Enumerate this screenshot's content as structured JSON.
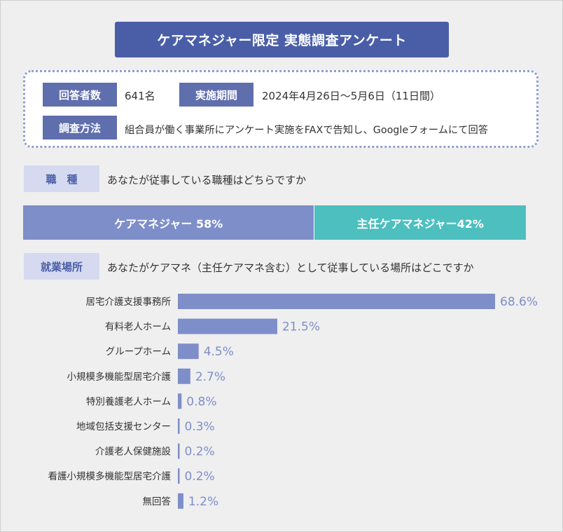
{
  "title": "ケアマネジャー限定 実態調査アンケート",
  "info": {
    "respondents_label": "回答者数",
    "respondents_value": "641名",
    "period_label": "実施期間",
    "period_value": "2024年4月26日〜5月6日（11日間）",
    "method_label": "調査方法",
    "method_value": "組合員が働く事業所にアンケート実施をFAXで告知し、Googleフォームにて回答"
  },
  "colors": {
    "title_bg": "#4a5ea8",
    "bar": "#7e8ec9",
    "stack_second": "#4cbfbe",
    "label_text": "#7e8ec9"
  },
  "q1": {
    "tag": "職　種",
    "question": "あなたが従事している職種はどちらですか"
  },
  "q2": {
    "tag": "就業場所",
    "question": "あなたがケアマネ（主任ケアマネ含む）として従事している場所はどこですか"
  },
  "chart_data": [
    {
      "type": "bar",
      "orientation": "horizontal-stacked",
      "series": [
        {
          "name": "ケアマネジャー",
          "value": 58,
          "label": "ケアマネジャー 58%"
        },
        {
          "name": "主任ケアマネジャー",
          "value": 42,
          "label": "主任ケアマネジャー42%"
        }
      ],
      "unit": "%"
    },
    {
      "type": "bar",
      "orientation": "horizontal",
      "categories": [
        "居宅介護支援事務所",
        "有料老人ホーム",
        "グループホーム",
        "小規模多機能型居宅介護",
        "特別養護老人ホーム",
        "地域包括支援センター",
        "介護老人保健施設",
        "看護小規模多機能型居宅介護",
        "無回答"
      ],
      "values": [
        68.6,
        21.5,
        4.5,
        2.7,
        0.8,
        0.3,
        0.2,
        0.2,
        1.2
      ],
      "value_labels": [
        "68.6%",
        "21.5%",
        "4.5%",
        "2.7%",
        "0.8%",
        "0.3%",
        "0.2%",
        "0.2%",
        "1.2%"
      ],
      "unit": "%",
      "xlim": [
        0,
        68.6
      ]
    }
  ]
}
